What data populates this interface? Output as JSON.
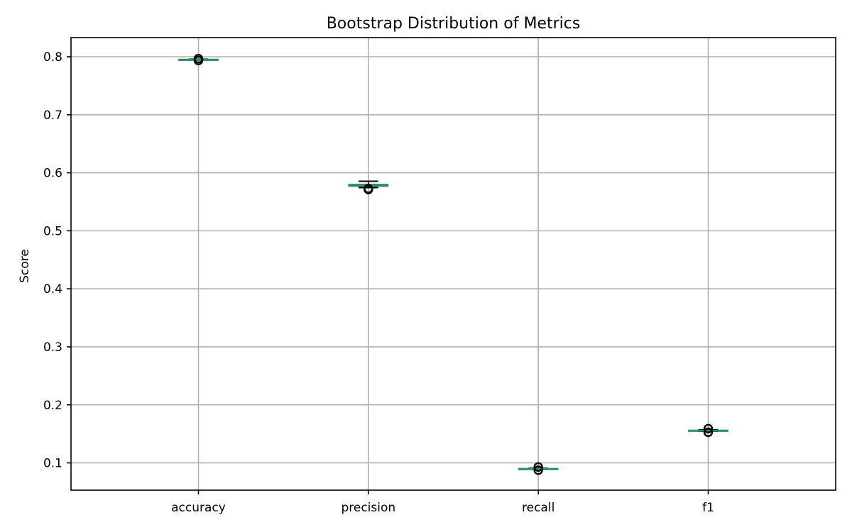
{
  "chart_data": {
    "type": "box",
    "title": "Bootstrap Distribution of Metrics",
    "xlabel": "",
    "ylabel": "Score",
    "ylim": [
      0.053,
      0.833
    ],
    "yticks": [
      0.1,
      0.2,
      0.3,
      0.4,
      0.5,
      0.6,
      0.7,
      0.8
    ],
    "ytick_labels": [
      "0.1",
      "0.2",
      "0.3",
      "0.4",
      "0.5",
      "0.6",
      "0.7",
      "0.8"
    ],
    "grid": true,
    "legend": "none",
    "categories": [
      "accuracy",
      "precision",
      "recall",
      "f1"
    ],
    "boxes": [
      {
        "whisker_low": 0.7945,
        "q1": 0.7948,
        "median": 0.7952,
        "q3": 0.7956,
        "whisker_high": 0.7959,
        "outliers": [
          0.7935,
          0.7968
        ]
      },
      {
        "whisker_low": 0.5745,
        "q1": 0.5768,
        "median": 0.5782,
        "q3": 0.58,
        "whisker_high": 0.5855,
        "outliers": [
          0.5712,
          0.5728
        ]
      },
      {
        "whisker_low": 0.0892,
        "q1": 0.0897,
        "median": 0.09,
        "q3": 0.0903,
        "whisker_high": 0.0908,
        "outliers": [
          0.0875,
          0.0928
        ]
      },
      {
        "whisker_low": 0.1545,
        "q1": 0.1552,
        "median": 0.1558,
        "q3": 0.1563,
        "whisker_high": 0.157,
        "outliers": [
          0.1528,
          0.159
        ]
      }
    ],
    "colors": {
      "box": "#1f77b4",
      "median": "#2ca02c",
      "whisker": "#000000",
      "grid": "#b0b0b0"
    }
  }
}
